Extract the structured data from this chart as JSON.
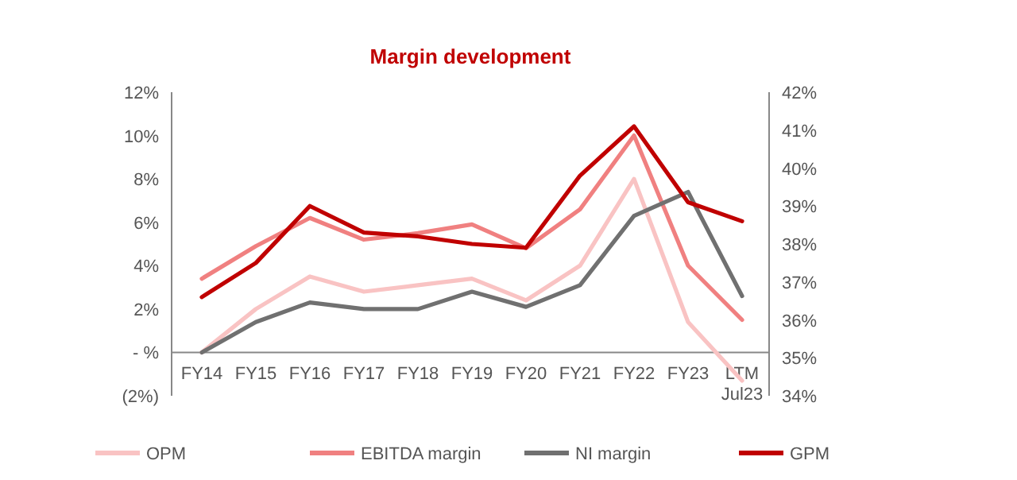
{
  "chart_data": {
    "type": "line",
    "title": "Margin development",
    "categories": [
      "FY14",
      "FY15",
      "FY16",
      "FY17",
      "FY18",
      "FY19",
      "FY20",
      "FY21",
      "FY22",
      "FY23",
      "LTM\nJul23"
    ],
    "series": [
      {
        "name": "OPM",
        "color": "#f9c3c3",
        "values": [
          0,
          2.0,
          3.5,
          2.8,
          3.1,
          3.4,
          2.4,
          4.0,
          8.0,
          1.4,
          -1.3
        ]
      },
      {
        "name": "EBITDA margin",
        "color": "#f08080",
        "values": [
          3.4,
          4.9,
          6.2,
          5.2,
          5.5,
          5.9,
          4.8,
          6.6,
          10.0,
          4.0,
          1.5
        ]
      },
      {
        "name": "NI margin",
        "color": "#707070",
        "values": [
          0,
          1.4,
          2.3,
          2.0,
          2.0,
          2.8,
          2.1,
          3.1,
          6.3,
          7.4,
          2.6
        ]
      },
      {
        "name": "GPM",
        "color": "#c00000",
        "axis": "y2",
        "values": [
          36.6,
          37.5,
          39.0,
          38.3,
          38.2,
          38.0,
          37.9,
          39.8,
          41.1,
          39.1,
          38.6
        ]
      }
    ],
    "ylim": [
      -2,
      12
    ],
    "yticks": [
      {
        "value": -2,
        "label": "(2%)"
      },
      {
        "value": 0,
        "label": "- %"
      },
      {
        "value": 2,
        "label": "2%"
      },
      {
        "value": 4,
        "label": "4%"
      },
      {
        "value": 6,
        "label": "6%"
      },
      {
        "value": 8,
        "label": "8%"
      },
      {
        "value": 10,
        "label": "10%"
      },
      {
        "value": 12,
        "label": "12%"
      }
    ],
    "y2lim": [
      34,
      42
    ],
    "y2ticks": [
      {
        "value": 34,
        "label": "34%"
      },
      {
        "value": 35,
        "label": "35%"
      },
      {
        "value": 36,
        "label": "36%"
      },
      {
        "value": 37,
        "label": "37%"
      },
      {
        "value": 38,
        "label": "38%"
      },
      {
        "value": 39,
        "label": "39%"
      },
      {
        "value": 40,
        "label": "40%"
      },
      {
        "value": 41,
        "label": "41%"
      },
      {
        "value": 42,
        "label": "42%"
      }
    ],
    "grid": false,
    "legend": "bottom",
    "marker": "none",
    "line_style": "solid"
  }
}
